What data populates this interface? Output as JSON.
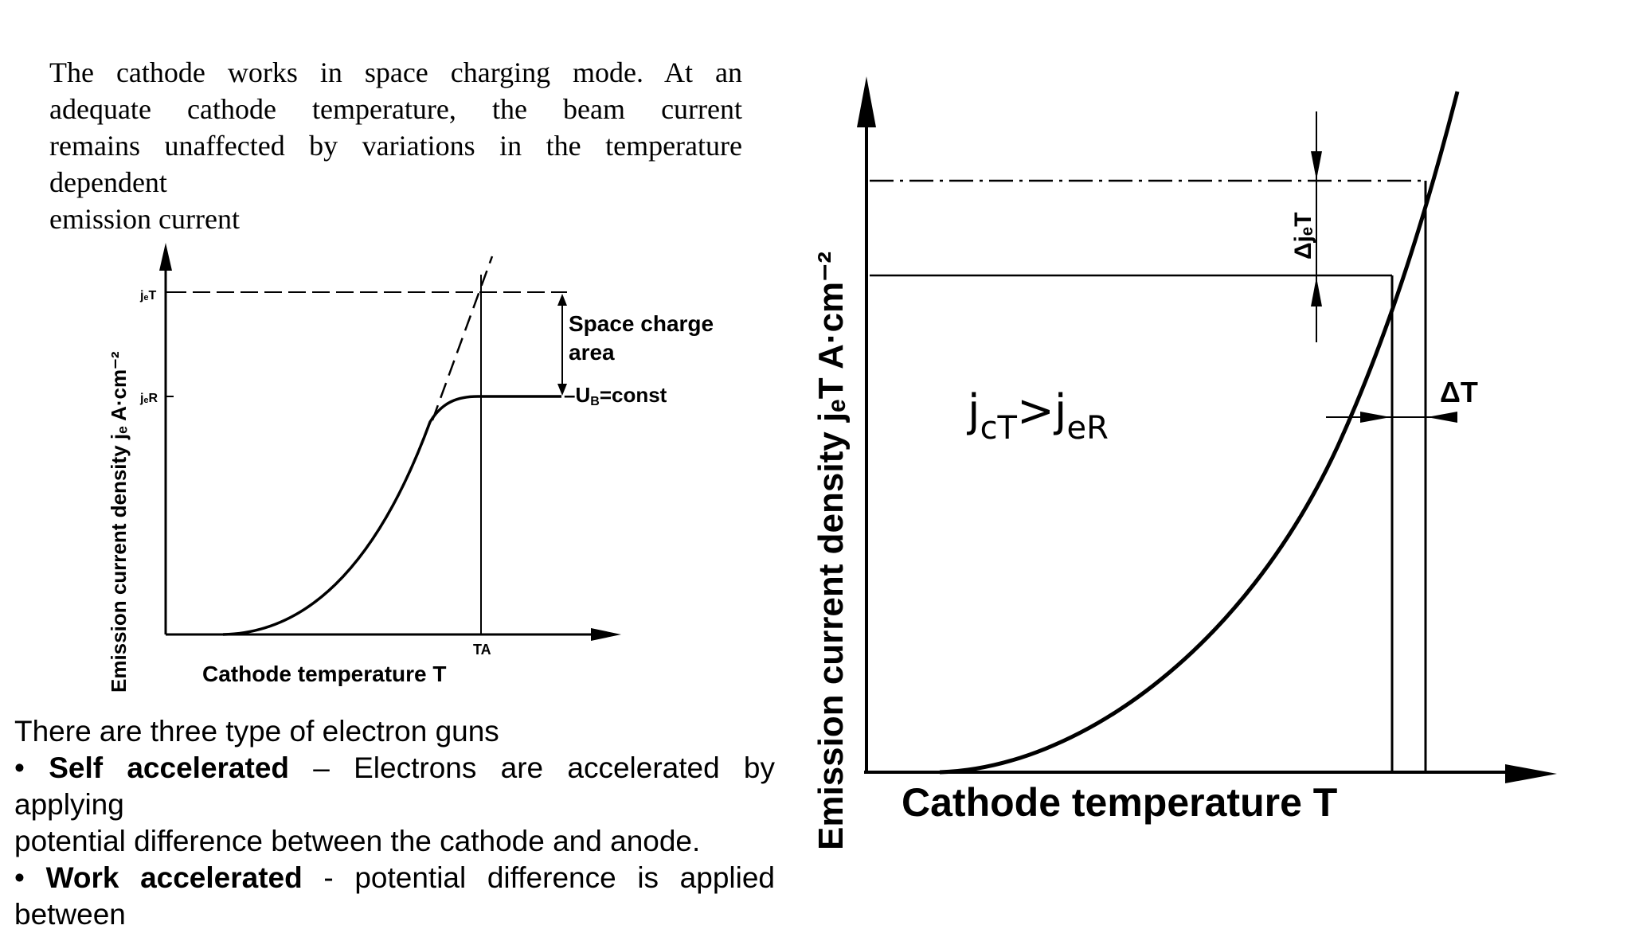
{
  "intro": {
    "line1": "The cathode works in space charging mode. At an",
    "line2": "adequate cathode temperature, the beam current",
    "line3": "remains unaffected by variations in the temperature",
    "line4": "dependent",
    "line5": "emission current"
  },
  "left_diagram": {
    "y_axis_label": "Emission current density jₑ  A·cm⁻²",
    "x_axis_label": "Cathode temperature T",
    "tick_jeT": "jₑT",
    "tick_jeR": "jₑR",
    "tick_TA": "TA",
    "annotation_space_charge_1": "Space charge",
    "annotation_space_charge_2": "area",
    "annotation_ub": "–U",
    "annotation_ub_sub": "B",
    "annotation_const": "=const"
  },
  "right_diagram": {
    "y_axis_label": "Emission current density jₑT  A·cm⁻²",
    "x_axis_label": "Cathode temperature T",
    "delta_j": "ΔjₑT",
    "delta_T": "ΔT",
    "relation_j": "j",
    "relation_sub1": "cT",
    "relation_gt": ">j",
    "relation_sub2": "eR"
  },
  "guns": {
    "heading": "There are three type of electron guns",
    "b1_bullet": "•",
    "b1_title": "Self accelerated",
    "b1_text": "– Electrons are accelerated by",
    "b1_cont1": "applying",
    "b1_cont2": "potential difference between the cathode and anode.",
    "b2_bullet": "•",
    "b2_title": "Work accelerated",
    "b2_text": "- potential difference is applied",
    "b2_cont1": "between"
  }
}
